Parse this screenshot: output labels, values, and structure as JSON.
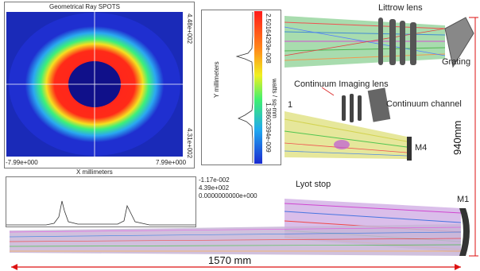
{
  "spot_panel": {
    "title": "Geometrical Ray SPOTS",
    "x_min": "-7.99e+000",
    "x_max": "7.99e+000",
    "y_top": "4.48e+002",
    "y_bottom": "4.31e+002"
  },
  "y_profile": {
    "axis_label": "Y millimeters",
    "colorbar_top": "2.50164293e-008",
    "colorbar_bottom": "1.38602394e-009",
    "unit": "watts / sq-mm"
  },
  "x_profile": {
    "axis_label": "X millimeters",
    "readouts": [
      "-1.17e-002",
      "4.39e+002",
      "0.0000000000e+000"
    ]
  },
  "layout_labels": {
    "littrow_lens": "Littrow lens",
    "grating": "Grating",
    "continuum_imaging_lens": "Continuum Imaging lens",
    "continuum_channel": "Continuum channel",
    "m1_partial": "1",
    "m4": "M4",
    "lyot_stop": "Lyot stop",
    "m1": "M1"
  },
  "dimensions": {
    "height": "940mm",
    "width": "1570 mm"
  },
  "colors": {
    "spot_outer": "#1f2fd0",
    "spot_green": "#3cff80",
    "spot_red": "#ff1f1f",
    "dimension_arrow": "#d11"
  }
}
